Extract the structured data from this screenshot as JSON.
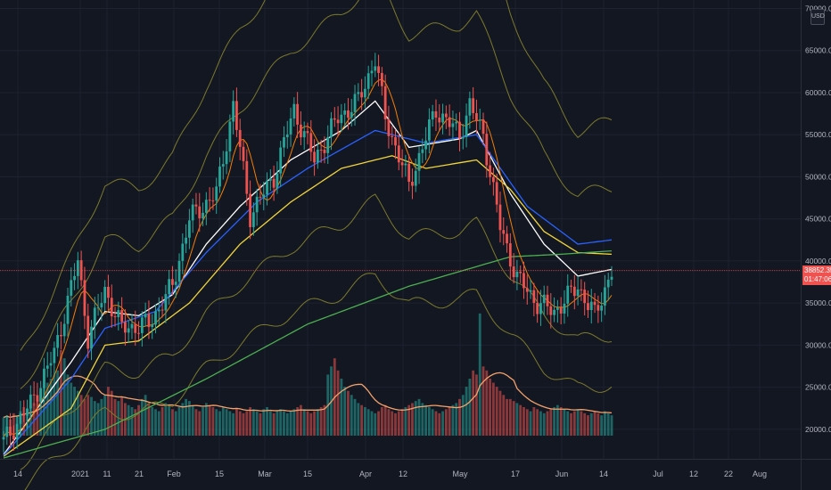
{
  "symbol": {
    "currency": "USD"
  },
  "current_price": {
    "price": "38852.35",
    "countdown": "01:47:06",
    "color": "#ef5350"
  },
  "colors": {
    "background": "#131722",
    "grid": "#1e2230",
    "up": "#26a69a",
    "down": "#ef5350",
    "ma_white": "#ffffff",
    "ma_yellow": "#f0d43a",
    "ma_blue": "#2962ff",
    "ma_orange": "#f57c00",
    "ma_green": "#4caf50",
    "bands": "#7c7a2a",
    "volume_ma": "#f4a26b"
  },
  "chart_data": {
    "type": "candlestick",
    "y_axis": {
      "range": [
        16500,
        71000
      ],
      "ticks": [
        "70000.00",
        "65000.00",
        "60000.00",
        "55000.00",
        "50000.00",
        "45000.00",
        "40000.00",
        "35000.00",
        "30000.00",
        "25000.00",
        "20000.00"
      ]
    },
    "x_axis": {
      "labels": [
        "14",
        "2021",
        "11",
        "21",
        "Feb",
        "15",
        "Mar",
        "15",
        "Apr",
        "12",
        "May",
        "17",
        "Jun",
        "14",
        "Jul",
        "12",
        "22",
        "Aug"
      ]
    },
    "price_path": [
      [
        0,
        18500
      ],
      [
        8,
        23000
      ],
      [
        15,
        29000
      ],
      [
        22,
        40000
      ],
      [
        25,
        31000
      ],
      [
        30,
        36500
      ],
      [
        35,
        32000
      ],
      [
        43,
        32500
      ],
      [
        50,
        37000
      ],
      [
        55,
        45000
      ],
      [
        63,
        48000
      ],
      [
        68,
        58500
      ],
      [
        73,
        45500
      ],
      [
        80,
        50000
      ],
      [
        86,
        58000
      ],
      [
        92,
        52000
      ],
      [
        99,
        57000
      ],
      [
        105,
        59000
      ],
      [
        110,
        64000
      ],
      [
        113,
        57000
      ],
      [
        120,
        49000
      ],
      [
        128,
        58000
      ],
      [
        135,
        55000
      ],
      [
        138,
        58500
      ],
      [
        142,
        55000
      ],
      [
        147,
        44000
      ],
      [
        152,
        38000
      ],
      [
        158,
        35000
      ],
      [
        163,
        34000
      ],
      [
        170,
        37000
      ],
      [
        175,
        33500
      ],
      [
        180,
        38852
      ]
    ],
    "moving_averages": [
      {
        "color": "#ffffff",
        "points": [
          [
            0,
            17000
          ],
          [
            20,
            28000
          ],
          [
            30,
            34000
          ],
          [
            40,
            33500
          ],
          [
            50,
            36000
          ],
          [
            60,
            42000
          ],
          [
            70,
            46500
          ],
          [
            85,
            52000
          ],
          [
            100,
            55500
          ],
          [
            110,
            59000
          ],
          [
            120,
            53500
          ],
          [
            135,
            54500
          ],
          [
            140,
            55500
          ],
          [
            150,
            48000
          ],
          [
            160,
            42000
          ],
          [
            170,
            38200
          ],
          [
            180,
            39000
          ]
        ]
      },
      {
        "color": "#f0d43a",
        "points": [
          [
            0,
            16800
          ],
          [
            20,
            22500
          ],
          [
            30,
            30000
          ],
          [
            40,
            30500
          ],
          [
            55,
            35000
          ],
          [
            70,
            42000
          ],
          [
            85,
            47000
          ],
          [
            100,
            51000
          ],
          [
            115,
            52500
          ],
          [
            125,
            51000
          ],
          [
            140,
            52000
          ],
          [
            150,
            48500
          ],
          [
            160,
            43500
          ],
          [
            170,
            41000
          ],
          [
            180,
            40800
          ]
        ]
      },
      {
        "color": "#2962ff",
        "points": [
          [
            0,
            16900
          ],
          [
            20,
            26000
          ],
          [
            30,
            32000
          ],
          [
            45,
            34000
          ],
          [
            60,
            41000
          ],
          [
            75,
            47000
          ],
          [
            90,
            51000
          ],
          [
            110,
            55500
          ],
          [
            125,
            54000
          ],
          [
            140,
            55000
          ],
          [
            155,
            46500
          ],
          [
            170,
            42000
          ],
          [
            180,
            42500
          ]
        ]
      },
      {
        "color": "#4caf50",
        "points": [
          [
            0,
            16600
          ],
          [
            30,
            20000
          ],
          [
            60,
            26000
          ],
          [
            90,
            32500
          ],
          [
            120,
            37000
          ],
          [
            150,
            40500
          ],
          [
            165,
            40800
          ],
          [
            180,
            41200
          ]
        ]
      }
    ],
    "volume": [
      9,
      10,
      8,
      11,
      10,
      12,
      14,
      13,
      15,
      16,
      18,
      22,
      24,
      26,
      28,
      30,
      32,
      42,
      38,
      30,
      26,
      24,
      22,
      20,
      18,
      20,
      19,
      17,
      16,
      18,
      20,
      24,
      22,
      18,
      17,
      19,
      16,
      15,
      14,
      13,
      15,
      18,
      20,
      16,
      14,
      13,
      12,
      14,
      16,
      15,
      13,
      12,
      14,
      16,
      18,
      17,
      15,
      13,
      12,
      14,
      16,
      15,
      14,
      13,
      12,
      14,
      13,
      12,
      11,
      13,
      12,
      11,
      12,
      14,
      13,
      12,
      11,
      13,
      14,
      12,
      11,
      12,
      13,
      12,
      11,
      12,
      13,
      14,
      15,
      13,
      12,
      11,
      12,
      13,
      14,
      15,
      30,
      34,
      38,
      32,
      28,
      24,
      22,
      20,
      18,
      16,
      15,
      14,
      13,
      12,
      11,
      12,
      14,
      15,
      13,
      12,
      11,
      12,
      13,
      14,
      15,
      16,
      17,
      18,
      16,
      15,
      14,
      13,
      12,
      11,
      12,
      13,
      14,
      15,
      16,
      18,
      20,
      24,
      28,
      32,
      30,
      60,
      34,
      32,
      28,
      26,
      24,
      22,
      20,
      18,
      18,
      17,
      16,
      15,
      14,
      13,
      12,
      14,
      13,
      12,
      11,
      12,
      13,
      14,
      15,
      14,
      13,
      12,
      11,
      12,
      13,
      12,
      11,
      10,
      11,
      12,
      11,
      10,
      12,
      11,
      10
    ]
  }
}
